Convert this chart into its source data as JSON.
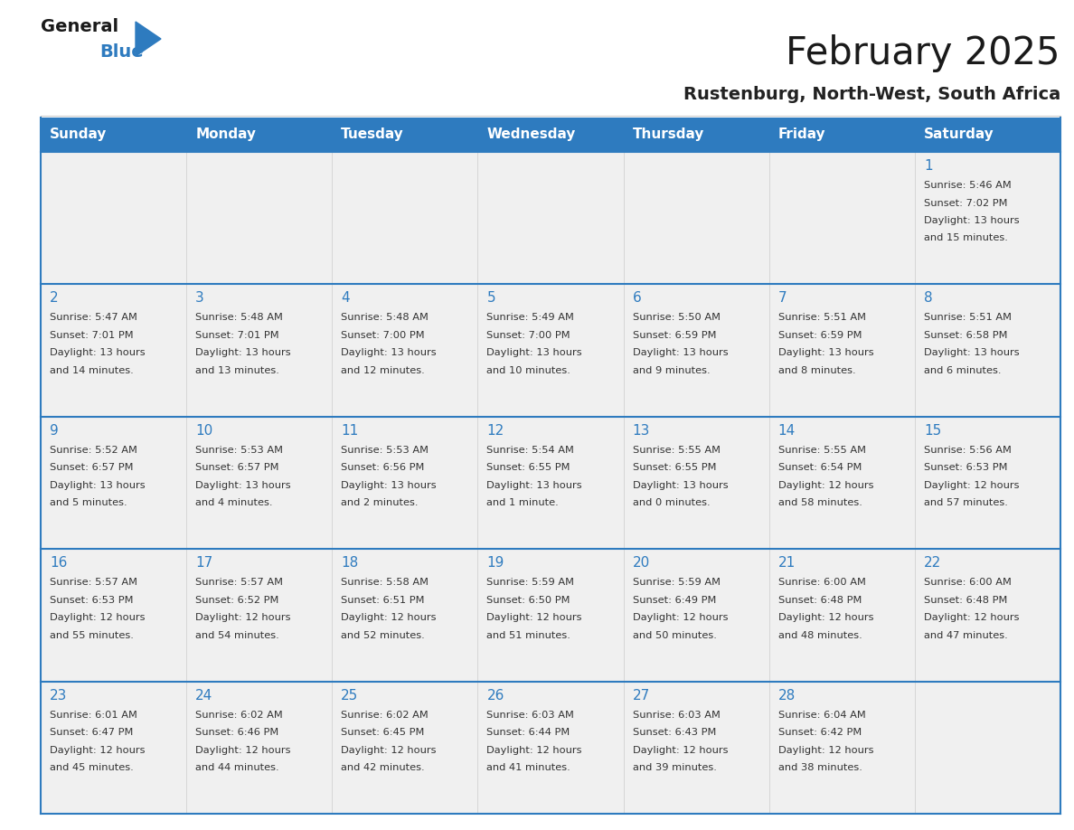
{
  "title": "February 2025",
  "subtitle": "Rustenburg, North-West, South Africa",
  "header_bg": "#2E7BBF",
  "header_text_color": "#FFFFFF",
  "cell_bg": "#F0F0F0",
  "border_color": "#2E7BBF",
  "day_headers": [
    "Sunday",
    "Monday",
    "Tuesday",
    "Wednesday",
    "Thursday",
    "Friday",
    "Saturday"
  ],
  "title_color": "#1a1a1a",
  "subtitle_color": "#222222",
  "day_number_color": "#2E7BBF",
  "info_color": "#333333",
  "logo_general_color": "#1a1a1a",
  "logo_blue_color": "#2E7BBF",
  "weeks": [
    [
      {
        "day": null,
        "info": ""
      },
      {
        "day": null,
        "info": ""
      },
      {
        "day": null,
        "info": ""
      },
      {
        "day": null,
        "info": ""
      },
      {
        "day": null,
        "info": ""
      },
      {
        "day": null,
        "info": ""
      },
      {
        "day": 1,
        "info": "Sunrise: 5:46 AM\nSunset: 7:02 PM\nDaylight: 13 hours\nand 15 minutes."
      }
    ],
    [
      {
        "day": 2,
        "info": "Sunrise: 5:47 AM\nSunset: 7:01 PM\nDaylight: 13 hours\nand 14 minutes."
      },
      {
        "day": 3,
        "info": "Sunrise: 5:48 AM\nSunset: 7:01 PM\nDaylight: 13 hours\nand 13 minutes."
      },
      {
        "day": 4,
        "info": "Sunrise: 5:48 AM\nSunset: 7:00 PM\nDaylight: 13 hours\nand 12 minutes."
      },
      {
        "day": 5,
        "info": "Sunrise: 5:49 AM\nSunset: 7:00 PM\nDaylight: 13 hours\nand 10 minutes."
      },
      {
        "day": 6,
        "info": "Sunrise: 5:50 AM\nSunset: 6:59 PM\nDaylight: 13 hours\nand 9 minutes."
      },
      {
        "day": 7,
        "info": "Sunrise: 5:51 AM\nSunset: 6:59 PM\nDaylight: 13 hours\nand 8 minutes."
      },
      {
        "day": 8,
        "info": "Sunrise: 5:51 AM\nSunset: 6:58 PM\nDaylight: 13 hours\nand 6 minutes."
      }
    ],
    [
      {
        "day": 9,
        "info": "Sunrise: 5:52 AM\nSunset: 6:57 PM\nDaylight: 13 hours\nand 5 minutes."
      },
      {
        "day": 10,
        "info": "Sunrise: 5:53 AM\nSunset: 6:57 PM\nDaylight: 13 hours\nand 4 minutes."
      },
      {
        "day": 11,
        "info": "Sunrise: 5:53 AM\nSunset: 6:56 PM\nDaylight: 13 hours\nand 2 minutes."
      },
      {
        "day": 12,
        "info": "Sunrise: 5:54 AM\nSunset: 6:55 PM\nDaylight: 13 hours\nand 1 minute."
      },
      {
        "day": 13,
        "info": "Sunrise: 5:55 AM\nSunset: 6:55 PM\nDaylight: 13 hours\nand 0 minutes."
      },
      {
        "day": 14,
        "info": "Sunrise: 5:55 AM\nSunset: 6:54 PM\nDaylight: 12 hours\nand 58 minutes."
      },
      {
        "day": 15,
        "info": "Sunrise: 5:56 AM\nSunset: 6:53 PM\nDaylight: 12 hours\nand 57 minutes."
      }
    ],
    [
      {
        "day": 16,
        "info": "Sunrise: 5:57 AM\nSunset: 6:53 PM\nDaylight: 12 hours\nand 55 minutes."
      },
      {
        "day": 17,
        "info": "Sunrise: 5:57 AM\nSunset: 6:52 PM\nDaylight: 12 hours\nand 54 minutes."
      },
      {
        "day": 18,
        "info": "Sunrise: 5:58 AM\nSunset: 6:51 PM\nDaylight: 12 hours\nand 52 minutes."
      },
      {
        "day": 19,
        "info": "Sunrise: 5:59 AM\nSunset: 6:50 PM\nDaylight: 12 hours\nand 51 minutes."
      },
      {
        "day": 20,
        "info": "Sunrise: 5:59 AM\nSunset: 6:49 PM\nDaylight: 12 hours\nand 50 minutes."
      },
      {
        "day": 21,
        "info": "Sunrise: 6:00 AM\nSunset: 6:48 PM\nDaylight: 12 hours\nand 48 minutes."
      },
      {
        "day": 22,
        "info": "Sunrise: 6:00 AM\nSunset: 6:48 PM\nDaylight: 12 hours\nand 47 minutes."
      }
    ],
    [
      {
        "day": 23,
        "info": "Sunrise: 6:01 AM\nSunset: 6:47 PM\nDaylight: 12 hours\nand 45 minutes."
      },
      {
        "day": 24,
        "info": "Sunrise: 6:02 AM\nSunset: 6:46 PM\nDaylight: 12 hours\nand 44 minutes."
      },
      {
        "day": 25,
        "info": "Sunrise: 6:02 AM\nSunset: 6:45 PM\nDaylight: 12 hours\nand 42 minutes."
      },
      {
        "day": 26,
        "info": "Sunrise: 6:03 AM\nSunset: 6:44 PM\nDaylight: 12 hours\nand 41 minutes."
      },
      {
        "day": 27,
        "info": "Sunrise: 6:03 AM\nSunset: 6:43 PM\nDaylight: 12 hours\nand 39 minutes."
      },
      {
        "day": 28,
        "info": "Sunrise: 6:04 AM\nSunset: 6:42 PM\nDaylight: 12 hours\nand 38 minutes."
      },
      {
        "day": null,
        "info": ""
      }
    ]
  ]
}
